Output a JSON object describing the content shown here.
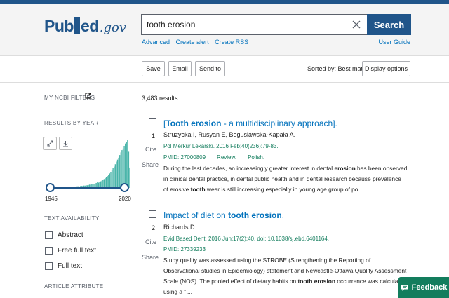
{
  "header": {
    "logo": {
      "pub": "Pub",
      "med": "ed",
      "gov": ".gov"
    },
    "search": {
      "value": "tooth erosion",
      "button": "Search"
    },
    "links": [
      "Advanced",
      "Create alert",
      "Create RSS"
    ],
    "user_guide": "User Guide"
  },
  "toolbar": {
    "save": "Save",
    "email": "Email",
    "send_to": "Send to",
    "sorted_by": "Sorted by: Best match",
    "display_options": "Display options"
  },
  "sidebar": {
    "my_filters": "MY NCBI FILTERS",
    "results_by_year": "RESULTS BY YEAR",
    "year_start": "1945",
    "year_end": "2020",
    "text_availability": "TEXT AVAILABILITY",
    "filters": [
      "Abstract",
      "Free full text",
      "Full text"
    ],
    "article_attribute": "ARTICLE ATTRIBUTE"
  },
  "results": {
    "count": "3,483 results",
    "cite_label": "Cite",
    "share_label": "Share",
    "items": [
      {
        "num": "1",
        "title_pre": "[",
        "title_bold": "Tooth erosion",
        "title_post": " - a multidisciplinary approach].",
        "authors": "Struzycka I, Rusyan E, Boguslawska-Kapała A.",
        "citation": "Pol Merkur Lekarski. 2016 Feb;40(236):79-83.",
        "pmid": "PMID: 27000809",
        "type": "Review.",
        "lang": "Polish.",
        "snippet": [
          "During the last decades, an increasingly greater interest in dental ",
          "erosion",
          " has been observed in clinical dental practice, in dental public health and in dental research because prevalence of erosive ",
          "tooth",
          " wear is still increasing especially in young age group of po ..."
        ]
      },
      {
        "num": "2",
        "title_pre": "Impact of diet on ",
        "title_bold": "tooth erosion",
        "title_post": ".",
        "authors": "Richards D.",
        "citation": "Evid Based Dent. 2016 Jun;17(2):40. doi: 10.1038/sj.ebd.6401164.",
        "pmid": "PMID: 27339233",
        "snippet": [
          "Study quality was assessed using the STROBE (Strengthening the Reporting of Observational studies in Epidemiology) statement and Newcastle-Ottawa Quality Assessment Scale (NOS). The pooled effect of dietary habits on ",
          "tooth erosion",
          " occurrence was calculated using a f ..."
        ]
      }
    ]
  },
  "feedback": "Feedback",
  "colors": {
    "brand": "#20558a",
    "link": "#0071bc",
    "citation": "#137d5d",
    "histogram": "#46b3a8"
  },
  "chart_data": {
    "type": "bar",
    "xlim": [
      1945,
      2020
    ],
    "values": [
      1,
      1,
      1,
      1,
      1,
      1,
      1,
      1,
      1,
      2,
      1,
      2,
      2,
      2,
      2,
      2,
      3,
      3,
      2,
      3,
      3,
      3,
      3,
      4,
      4,
      4,
      5,
      5,
      4,
      6,
      6,
      6,
      7,
      7,
      8,
      8,
      9,
      10,
      10,
      11,
      12,
      12,
      14,
      15,
      17,
      16,
      19,
      20,
      22,
      24,
      27,
      30,
      32,
      36,
      40,
      44,
      48,
      55,
      60,
      65,
      72,
      80,
      86,
      92,
      100,
      108,
      115,
      120,
      128,
      135,
      140,
      145,
      110,
      62
    ]
  }
}
